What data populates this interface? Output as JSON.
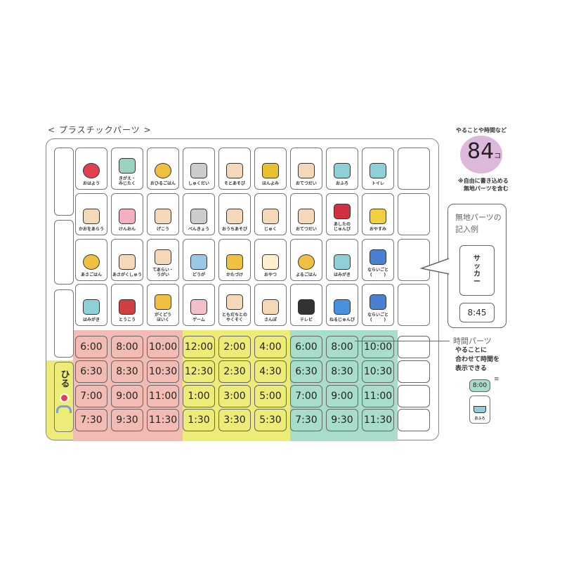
{
  "title": "< プラスチックパーツ >",
  "count_badge": {
    "arc_text": "やることや時間など",
    "number": "84",
    "unit": "コ",
    "note": "※自由に書き込める\n無地パーツを含む",
    "color": "#dcb8da"
  },
  "activity_rows": [
    [
      {
        "label": "おはよう",
        "icon": "sun-icon"
      },
      {
        "label": "きがえ・\nみじたく",
        "icon": "clothes-icon"
      },
      {
        "label": "おひるごはん",
        "icon": "rice-bowl-icon"
      },
      {
        "label": "しゅくだい",
        "icon": "notebook-icon"
      },
      {
        "label": "そとあそび",
        "icon": "swing-icon"
      },
      {
        "label": "ほんよみ",
        "icon": "book-icon"
      },
      {
        "label": "おてつだい",
        "icon": "girl-helping-icon"
      },
      {
        "label": "おふろ",
        "icon": "bathtub-icon"
      },
      {
        "label": "トイレ",
        "icon": "toilet-icon"
      },
      {
        "label": "",
        "icon": ""
      }
    ],
    [
      {
        "label": "かおをあらう",
        "icon": "face-wash-icon"
      },
      {
        "label": "けんおん",
        "icon": "thermometer-icon"
      },
      {
        "label": "げこう",
        "icon": "girl-waving-icon"
      },
      {
        "label": "べんきょう",
        "icon": "notebook-icon"
      },
      {
        "label": "おうちあそび",
        "icon": "crafts-icon"
      },
      {
        "label": "じゅく",
        "icon": "boy-studying-icon"
      },
      {
        "label": "おてつだい",
        "icon": "boy-helping-icon"
      },
      {
        "label": "あしたの\nじゅんび",
        "icon": "school-bag-icon"
      },
      {
        "label": "おやすみ",
        "icon": "moon-icon"
      },
      {
        "label": "",
        "icon": ""
      }
    ],
    [
      {
        "label": "あさごはん",
        "icon": "rice-bowl-icon"
      },
      {
        "label": "あさがくしゅう",
        "icon": "book-sun-icon"
      },
      {
        "label": "てあらい・\nうがい",
        "icon": "hand-wash-icon"
      },
      {
        "label": "どうが",
        "icon": "tablet-icon"
      },
      {
        "label": "かたづけ",
        "icon": "toy-box-icon"
      },
      {
        "label": "おやつ",
        "icon": "cake-icon"
      },
      {
        "label": "よるごはん",
        "icon": "rice-bowl-icon"
      },
      {
        "label": "はみがき",
        "icon": "toothbrush-cup-icon"
      },
      {
        "label": "ならいごと\n(        )",
        "icon": "lesson-bag-icon"
      },
      {
        "label": "",
        "icon": ""
      }
    ],
    [
      {
        "label": "はみがき",
        "icon": "toothbrush-cup-icon"
      },
      {
        "label": "とうこう",
        "icon": "school-icon"
      },
      {
        "label": "がくどう\nほいく",
        "icon": "afterschool-icon"
      },
      {
        "label": "ゲーム",
        "icon": "game-console-icon"
      },
      {
        "label": "ともだちとの\nやくそく",
        "icon": "pinky-promise-icon"
      },
      {
        "label": "さんぽ",
        "icon": "dog-walk-icon"
      },
      {
        "label": "テレビ",
        "icon": "tv-icon"
      },
      {
        "label": "ねるじゅんび",
        "icon": "alarm-clock-icon"
      },
      {
        "label": "ならいごと\n(        )",
        "icon": "lesson-bag-icon"
      },
      {
        "label": "",
        "icon": ""
      }
    ]
  ],
  "time_rows": [
    [
      "6:00",
      "8:00",
      "10:00",
      "12:00",
      "2:00",
      "4:00",
      "6:00",
      "8:00",
      "10:00",
      ""
    ],
    [
      "6:30",
      "8:30",
      "10:30",
      "12:30",
      "2:30",
      "4:30",
      "6:30",
      "8:30",
      "10:30",
      ""
    ],
    [
      "7:00",
      "9:00",
      "11:00",
      "1:00",
      "3:00",
      "5:00",
      "7:00",
      "9:00",
      "11:00",
      ""
    ],
    [
      "7:30",
      "9:30",
      "11:30",
      "1:30",
      "3:30",
      "5:30",
      "7:30",
      "9:30",
      "11:30",
      ""
    ]
  ],
  "band_colors": {
    "morning": "#f2bcb4",
    "afternoon": "#eeec78",
    "evening": "#a8dccb"
  },
  "side_label": {
    "text": "ひる",
    "color": "#eeec78"
  },
  "blank_example": {
    "title": "無地パーツの\n記入例",
    "sample_text": "サ\nッ\nカ\nー",
    "sample_time": "8:45"
  },
  "time_parts": {
    "title": "時間パーツ",
    "desc": "やることに\n合わせて時間を\n表示できる",
    "sample_time": "8:00",
    "sample_label": "おふろ"
  }
}
